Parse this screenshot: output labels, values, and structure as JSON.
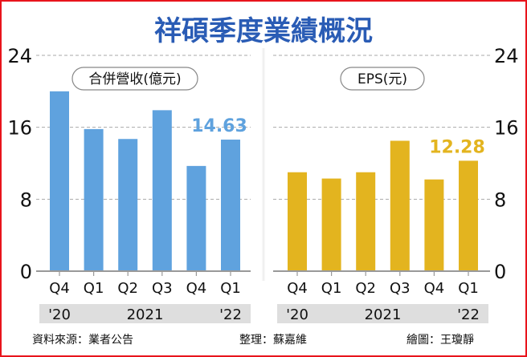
{
  "title": "祥碩季度業績概況",
  "colors": {
    "revenue": "#5fa2de",
    "eps": "#e3b41f",
    "title": "#2a5cb5",
    "border": "#e8141c"
  },
  "chart_data": [
    {
      "type": "bar",
      "title": "合併營收(億元)",
      "categories": [
        "Q4",
        "Q1",
        "Q2",
        "Q3",
        "Q4",
        "Q1"
      ],
      "year_groups": [
        {
          "label": "'20",
          "span": 1
        },
        {
          "label": "2021",
          "span": 4
        },
        {
          "label": "'22",
          "span": 1
        }
      ],
      "values": [
        20.0,
        15.8,
        14.7,
        17.9,
        11.7,
        14.63
      ],
      "data_labels": [
        {
          "index": 5,
          "text": "14.63"
        }
      ],
      "ylim": [
        0,
        24
      ],
      "yticks": [
        "0",
        "8",
        "16",
        "24"
      ],
      "axis_side": "left",
      "grid": true
    },
    {
      "type": "bar",
      "title": "EPS(元)",
      "categories": [
        "Q4",
        "Q1",
        "Q2",
        "Q3",
        "Q4",
        "Q1"
      ],
      "year_groups": [
        {
          "label": "'20",
          "span": 1
        },
        {
          "label": "2021",
          "span": 4
        },
        {
          "label": "'22",
          "span": 1
        }
      ],
      "values": [
        11.0,
        10.3,
        11.0,
        14.5,
        10.2,
        12.28
      ],
      "data_labels": [
        {
          "index": 5,
          "text": "12.28"
        }
      ],
      "ylim": [
        0,
        24
      ],
      "yticks": [
        "0",
        "8",
        "16",
        "24"
      ],
      "axis_side": "right",
      "grid": true
    }
  ],
  "footer": {
    "source": "資料來源：業者公告",
    "editor": "整理：蘇嘉維",
    "artist": "繪圖：王瓊靜"
  }
}
